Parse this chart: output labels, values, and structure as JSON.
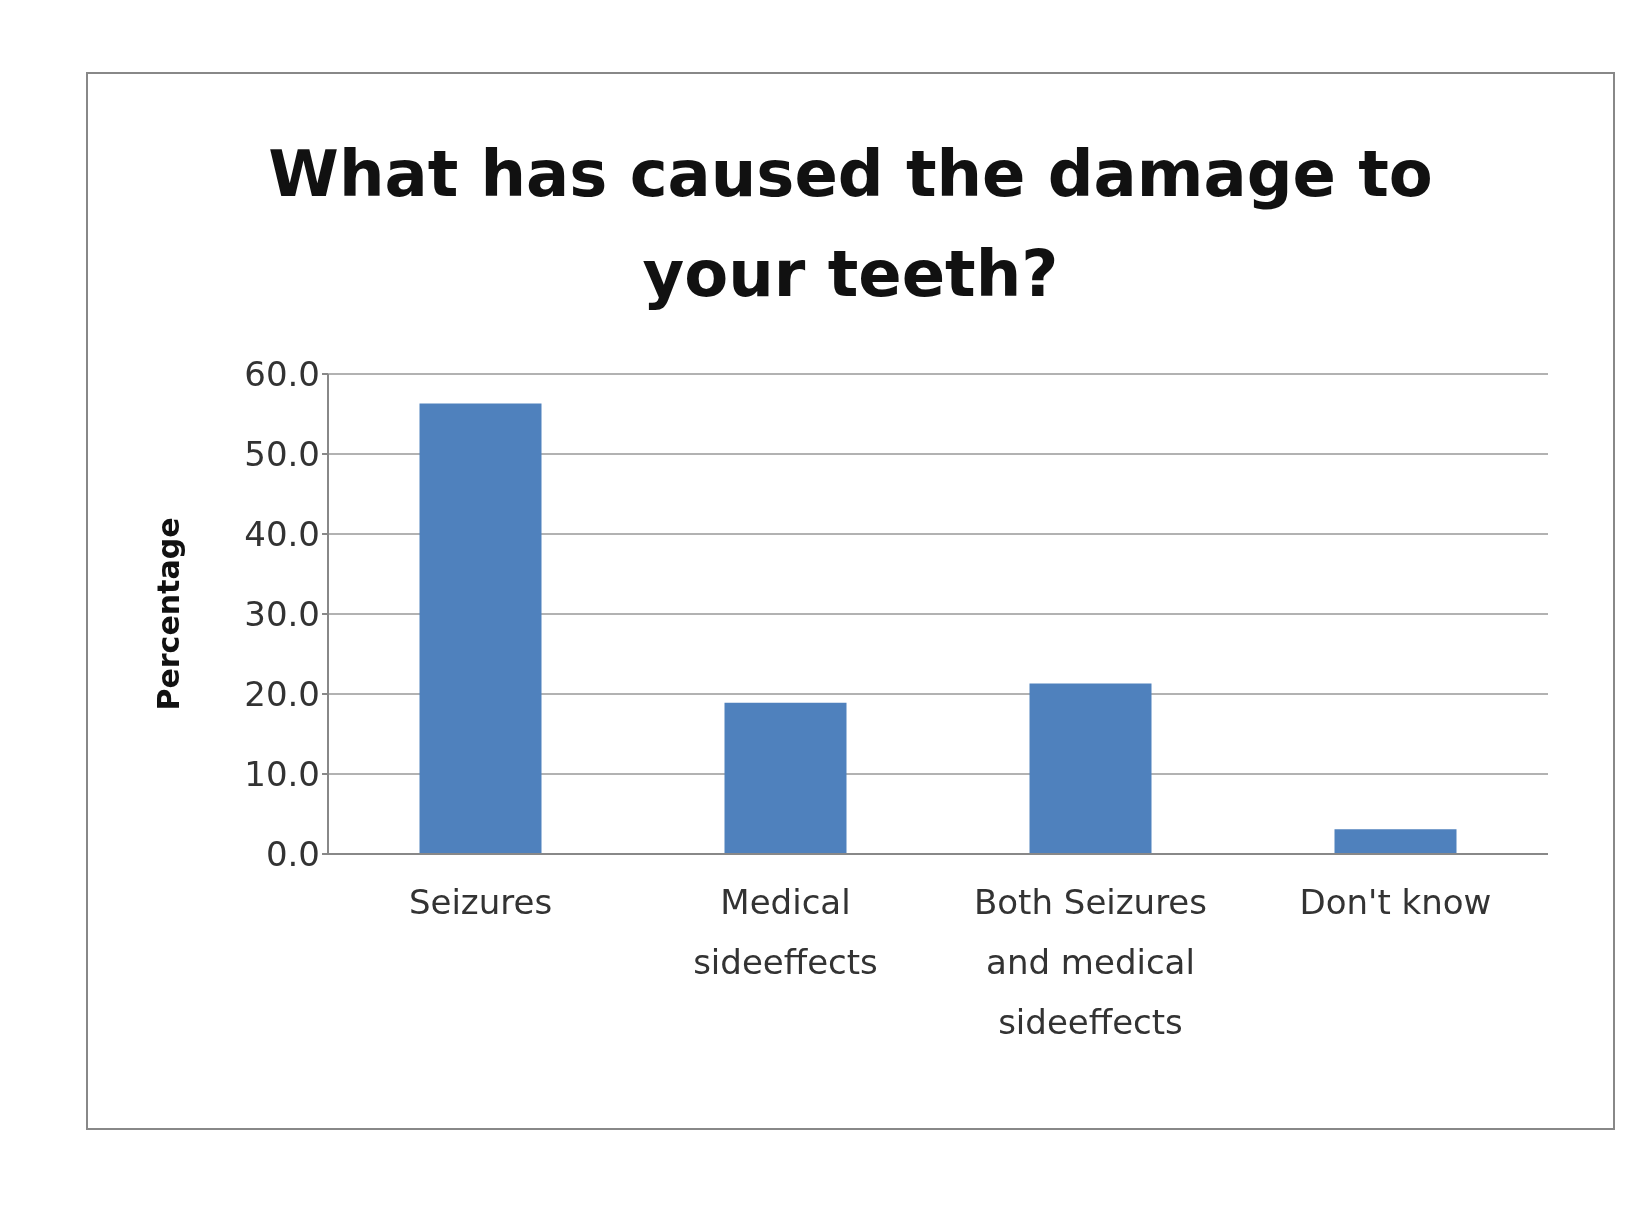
{
  "chart_data": {
    "type": "bar",
    "title": "What has caused the damage to your teeth?",
    "ylabel": "Percentage",
    "categories": [
      "Seizures",
      "Medical sideeffects",
      "Both Seizures and medical sideeffects",
      "Don't know"
    ],
    "values": [
      56.3,
      18.9,
      21.3,
      3.1
    ],
    "color": "#4f81bd",
    "ylim": [
      0,
      60
    ],
    "yticks": [
      {
        "value": 0,
        "label": "0.0"
      },
      {
        "value": 10,
        "label": "10.0"
      },
      {
        "value": 20,
        "label": "20.0"
      },
      {
        "value": 30,
        "label": "30.0"
      },
      {
        "value": 40,
        "label": "40.0"
      },
      {
        "value": 50,
        "label": "50.0"
      },
      {
        "value": 60,
        "label": "60.0"
      }
    ],
    "grid": "y",
    "legend": false
  }
}
